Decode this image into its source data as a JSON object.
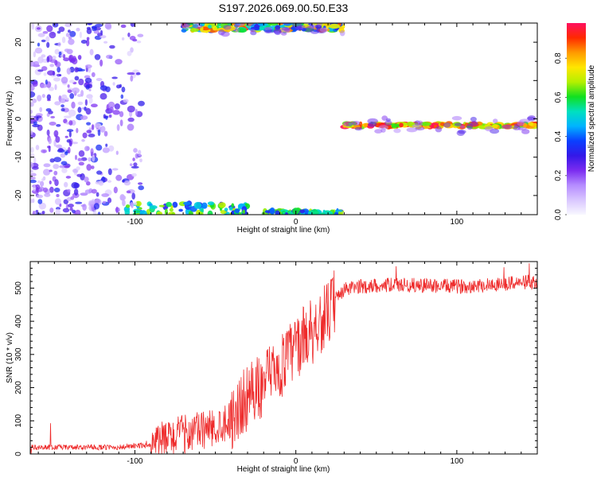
{
  "title": "S197.2026.069.00.50.E33",
  "colors": {
    "line": "#ee2b2b",
    "frame": "#000000"
  },
  "colormap": [
    "#f8f8ff",
    "#d9c6ff",
    "#b58cff",
    "#7b2cf0",
    "#3418e8",
    "#0a40ff",
    "#00b4ff",
    "#00e0c0",
    "#10e020",
    "#b4f000",
    "#ffe600",
    "#ff9a00",
    "#ff2a00",
    "#ff1060"
  ],
  "chart_data": [
    {
      "type": "heatmap",
      "title": "",
      "xlabel": "Height of straight line (km)",
      "ylabel": "Frequency (Hz)",
      "xlim": [
        -165,
        150
      ],
      "ylim": [
        -25,
        25
      ],
      "x_ticks": [
        "-100",
        "0",
        "100"
      ],
      "y_ticks": [
        "-20",
        "-10",
        "0",
        "10",
        "20"
      ],
      "colorbar": {
        "label": "Normalized spectral amplitude",
        "range": [
          0,
          0.98
        ],
        "ticks": [
          "0.0",
          "0.2",
          "0.4",
          "0.6",
          "0.8"
        ]
      },
      "features": [
        {
          "x": [
            30,
            150
          ],
          "y": [
            -2.2,
            -1.2
          ],
          "amplitude": [
            0.6,
            0.98
          ]
        },
        {
          "x": [
            -70,
            30
          ],
          "y": [
            23,
            25
          ],
          "amplitude": [
            0.3,
            0.9
          ]
        },
        {
          "x": [
            -105,
            -30
          ],
          "y": [
            -25,
            -22
          ],
          "amplitude": [
            0.3,
            0.7
          ]
        },
        {
          "x": [
            -20,
            30
          ],
          "y": [
            -25,
            -24
          ],
          "amplitude": [
            0.3,
            0.7
          ]
        },
        {
          "x": [
            -165,
            -95
          ],
          "y": [
            -25,
            25
          ],
          "amplitude": [
            0.05,
            0.35
          ]
        }
      ]
    },
    {
      "type": "line",
      "title": "",
      "xlabel": "Height of straight line (km)",
      "ylabel": "SNR (10 * v/v)",
      "xlim": [
        -165,
        150
      ],
      "ylim": [
        0,
        580
      ],
      "x_ticks": [
        "-100",
        "0",
        "100"
      ],
      "y_ticks": [
        "0",
        "100",
        "200",
        "300",
        "400",
        "500"
      ],
      "trend": {
        "x": [
          -165,
          -110,
          -90,
          -70,
          -50,
          -40,
          -30,
          -20,
          -10,
          0,
          10,
          20,
          25,
          30,
          40,
          60,
          80,
          100,
          120,
          150
        ],
        "y": [
          20,
          20,
          28,
          60,
          80,
          110,
          170,
          210,
          260,
          320,
          380,
          420,
          470,
          495,
          505,
          510,
          508,
          505,
          510,
          520
        ]
      }
    }
  ]
}
